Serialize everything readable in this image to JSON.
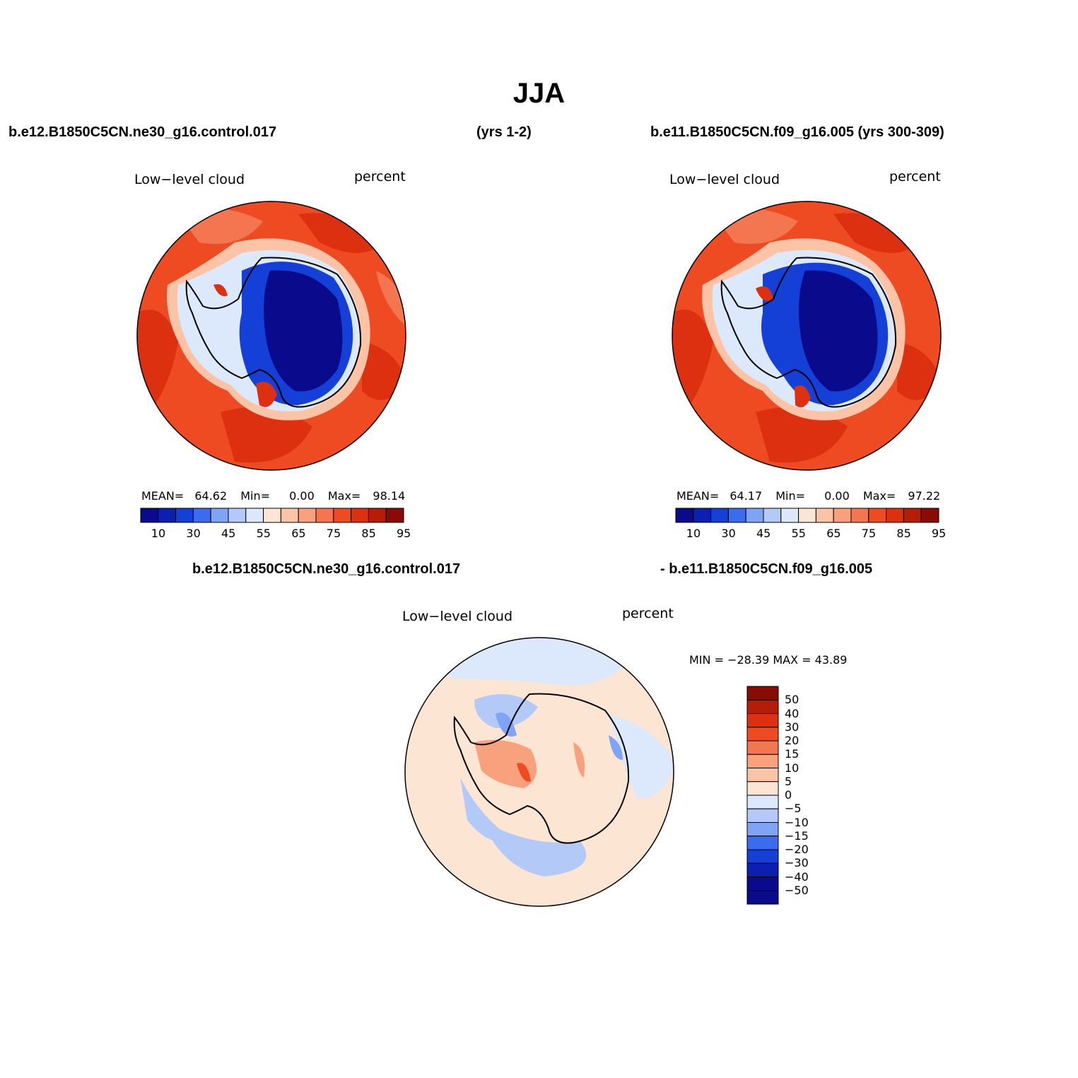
{
  "title": "JJA",
  "header": {
    "case_a": "b.e12.B1850C5CN.ne30_g16.control.017",
    "years_a": "(yrs 1-2)",
    "case_b": "b.e11.B1850C5CN.f09_g16.005 (yrs 300-309)"
  },
  "panels": [
    {
      "variable": "Low−level cloud",
      "units": "percent",
      "stats": {
        "mean_label": "MEAN=",
        "mean": "64.62",
        "min_label": "Min=",
        "min": "0.00",
        "max_label": "Max=",
        "max": "98.14"
      }
    },
    {
      "variable": "Low−level cloud",
      "units": "percent",
      "stats": {
        "mean_label": "MEAN=",
        "mean": "64.17",
        "min_label": "Min=",
        "min": "0.00",
        "max_label": "Max=",
        "max": "97.22"
      }
    }
  ],
  "diff": {
    "case_a": "b.e12.B1850C5CN.ne30_g16.control.017",
    "case_b": "- b.e11.B1850C5CN.f09_g16.005",
    "variable": "Low−level cloud",
    "units": "percent",
    "minmax": "MIN = −28.39  MAX =   43.89"
  },
  "colorbar_main": {
    "ticks": [
      "10",
      "30",
      "45",
      "55",
      "65",
      "75",
      "85",
      "95"
    ],
    "colors": [
      "#0a0a8c",
      "#0b1fb0",
      "#1540d8",
      "#3b6cf0",
      "#7fa3f5",
      "#b3caf8",
      "#dce8fb",
      "#fde5d3",
      "#fcc4a6",
      "#f9a07c",
      "#f47650",
      "#ee4b22",
      "#dc3010",
      "#b51d08",
      "#8a0a05"
    ]
  },
  "colorbar_diff": {
    "ticks": [
      "50",
      "40",
      "30",
      "20",
      "15",
      "10",
      "5",
      "0",
      "−5",
      "−10",
      "−15",
      "−20",
      "−30",
      "−40",
      "−50"
    ],
    "colors": [
      "#8a0a05",
      "#b51d08",
      "#dc3010",
      "#ee4b22",
      "#f47650",
      "#f9a07c",
      "#fcc4a6",
      "#fde5d3",
      "#dce8fb",
      "#b3caf8",
      "#7fa3f5",
      "#3b6cf0",
      "#1540d8",
      "#0b1fb0",
      "#0a0a8c",
      "#0a0a8c"
    ]
  },
  "map_colors": {
    "ocean_main": "#ee4b22",
    "ocean_dark": "#dc3010",
    "ocean_light": "#f47650",
    "rim_light": "#fcc4a6",
    "transition": "#dce8fb",
    "ice_blue": "#1540d8",
    "ice_core": "#0a0a8c",
    "diff_bg": "#fde5d3",
    "diff_blue": "#b3caf8",
    "diff_blue2": "#7fa3f5",
    "diff_red": "#f9a07c",
    "diff_red2": "#ee4b22"
  }
}
